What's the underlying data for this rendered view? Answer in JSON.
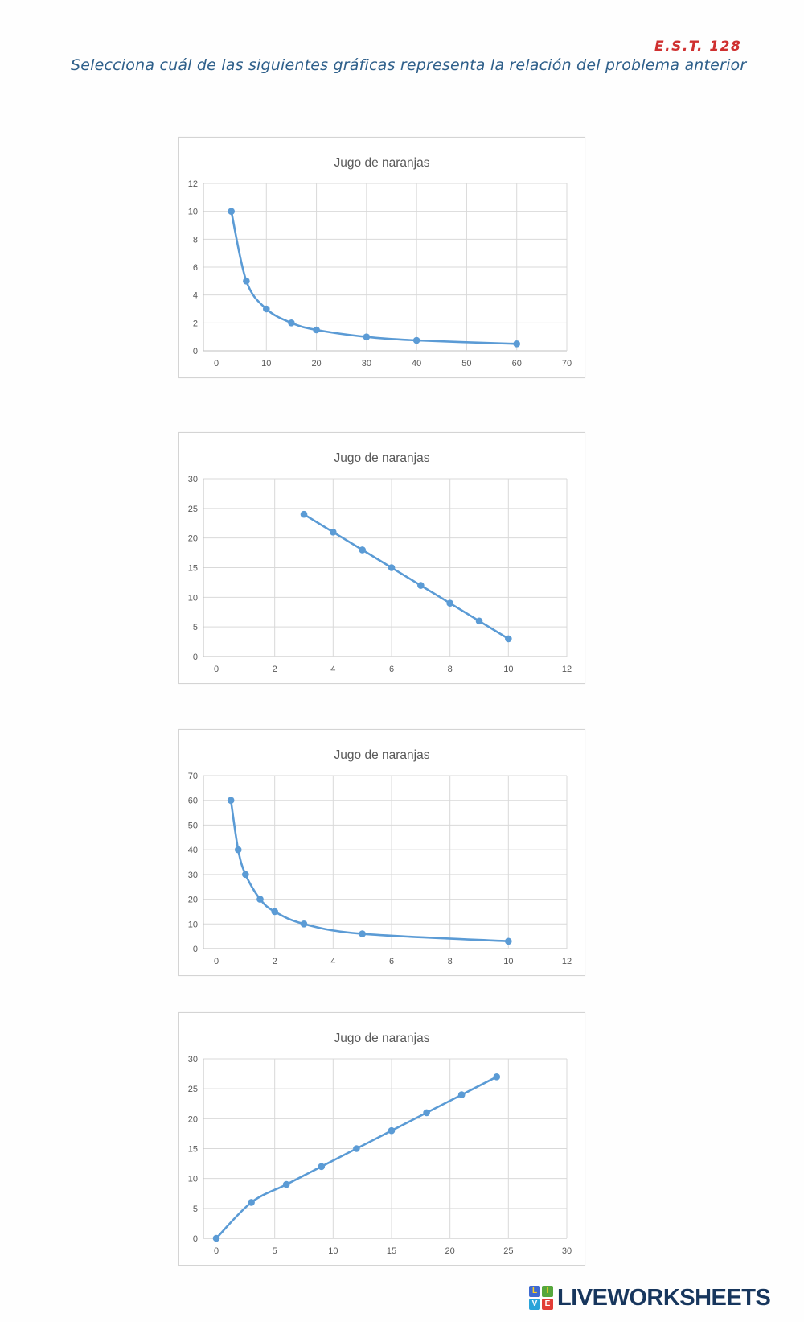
{
  "page": {
    "note": "E.S.T. 128",
    "note_color": "#cf3030",
    "question": "Selecciona cuál de las siguientes gráficas representa la relación del problema anterior",
    "question_color": "#2e5f8a"
  },
  "chart_data": [
    {
      "option": "A",
      "type": "line",
      "title": "Jugo de naranjas",
      "x": [
        3,
        6,
        10,
        15,
        20,
        30,
        40,
        60
      ],
      "y": [
        10,
        5,
        3,
        2,
        1.5,
        1,
        0.75,
        0.5
      ],
      "xlim": [
        0,
        70
      ],
      "ylim": [
        0,
        12
      ],
      "x_ticks": [
        0,
        10,
        20,
        30,
        40,
        50,
        60,
        70
      ],
      "y_ticks": [
        0,
        2,
        4,
        6,
        8,
        10,
        12
      ],
      "xlabel": "",
      "ylabel": "",
      "grid": true,
      "legend": "none",
      "line_color": "#5b9bd5",
      "label_color": "#595959",
      "grid_color": "#d9d9d9",
      "axis_color": "#bfbfbf"
    },
    {
      "option": "B",
      "type": "line",
      "title": "Jugo de naranjas",
      "x": [
        3,
        4,
        5,
        6,
        7,
        8,
        9,
        10
      ],
      "y": [
        24,
        21,
        18,
        15,
        12,
        9,
        6,
        3
      ],
      "xlim": [
        0,
        12
      ],
      "ylim": [
        0,
        30
      ],
      "x_ticks": [
        0,
        2,
        4,
        6,
        8,
        10,
        12
      ],
      "y_ticks": [
        0,
        5,
        10,
        15,
        20,
        25,
        30
      ],
      "xlabel": "",
      "ylabel": "",
      "grid": true,
      "legend": "none",
      "line_color": "#5b9bd5",
      "label_color": "#595959",
      "grid_color": "#d9d9d9",
      "axis_color": "#bfbfbf"
    },
    {
      "option": "C",
      "type": "line",
      "title": "Jugo de naranjas",
      "x": [
        0.5,
        0.75,
        1,
        1.5,
        2,
        3,
        5,
        10
      ],
      "y": [
        60,
        40,
        30,
        20,
        15,
        10,
        6,
        3
      ],
      "xlim": [
        0,
        12
      ],
      "ylim": [
        0,
        70
      ],
      "x_ticks": [
        0,
        2,
        4,
        6,
        8,
        10,
        12
      ],
      "y_ticks": [
        0,
        10,
        20,
        30,
        40,
        50,
        60,
        70
      ],
      "xlabel": "",
      "ylabel": "",
      "grid": true,
      "legend": "none",
      "line_color": "#5b9bd5",
      "label_color": "#595959",
      "grid_color": "#d9d9d9",
      "axis_color": "#bfbfbf"
    },
    {
      "option": "D",
      "type": "line",
      "title": "Jugo de naranjas",
      "x": [
        0,
        3,
        6,
        9,
        12,
        15,
        18,
        21,
        24
      ],
      "y": [
        0,
        6,
        9,
        12,
        15,
        18,
        21,
        24,
        27
      ],
      "xlim": [
        0,
        30
      ],
      "ylim": [
        0,
        30
      ],
      "x_ticks": [
        0,
        5,
        10,
        15,
        20,
        25,
        30
      ],
      "y_ticks": [
        0,
        5,
        10,
        15,
        20,
        25,
        30
      ],
      "xlabel": "",
      "ylabel": "",
      "grid": true,
      "legend": "none",
      "line_color": "#5b9bd5",
      "label_color": "#595959",
      "grid_color": "#d9d9d9",
      "axis_color": "#bfbfbf"
    }
  ],
  "footer": {
    "brand": "LIVEWORKSHEETS",
    "brand_color": "#17365d",
    "logo_letters": [
      "L",
      "I",
      "V",
      "E"
    ],
    "logo_bg": [
      "#3f6ad0",
      "#56a73c",
      "#2aa4d9",
      "#e23c36"
    ],
    "logo_fg": [
      "#ffd21e",
      "#ffd21e",
      "#ffffff",
      "#ffffff"
    ]
  }
}
